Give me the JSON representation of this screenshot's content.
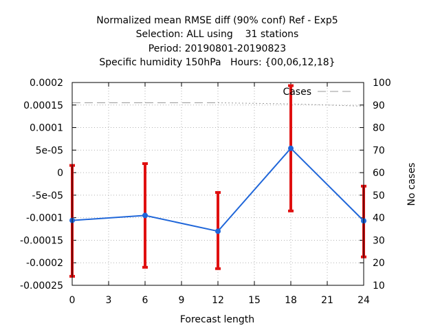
{
  "chart_data": {
    "type": "line",
    "title_lines": [
      "Normalized mean RMSE diff (90% conf) Ref - Exp5",
      "Selection: ALL using    31 stations",
      "Period: 20190801-20190823",
      "Specific humidity 150hPa   Hours: {00,06,12,18}"
    ],
    "xlabel": "Forecast length",
    "ylabel": "",
    "y2label": "No cases",
    "xlim": [
      0,
      24
    ],
    "ylim": [
      -0.00025,
      0.0002
    ],
    "y2lim": [
      10,
      100
    ],
    "x_ticks": [
      "0",
      "3",
      "6",
      "9",
      "12",
      "15",
      "18",
      "21",
      "24"
    ],
    "y_ticks": [
      "0.0002",
      "0.00015",
      "0.0001",
      "5e-05",
      "0",
      "-5e-05",
      "-0.0001",
      "-0.00015",
      "-0.0002",
      "-0.00025"
    ],
    "y2_ticks": [
      "100",
      "90",
      "80",
      "70",
      "60",
      "50",
      "40",
      "30",
      "20",
      "10"
    ],
    "grid": true,
    "legend_position": "top-right",
    "series": [
      {
        "name": "",
        "color": "#1f66d9",
        "x": [
          0,
          6,
          12,
          18,
          24
        ],
        "y": [
          -0.000106,
          -9.5e-05,
          -0.00013,
          5.4e-05,
          -0.000107
        ],
        "error_low": [
          -0.00023,
          -0.00021,
          -0.000213,
          -8.5e-05,
          -0.000187
        ],
        "error_high": [
          1.6e-05,
          2e-05,
          -4.4e-05,
          0.000193,
          -3e-05
        ],
        "error_color": "#e01010"
      },
      {
        "name": "Cases",
        "axis": "right",
        "color": "#999999",
        "x": [
          0,
          6,
          12,
          18,
          24
        ],
        "y": [
          91,
          91,
          91,
          90.5,
          89.5
        ]
      }
    ]
  }
}
